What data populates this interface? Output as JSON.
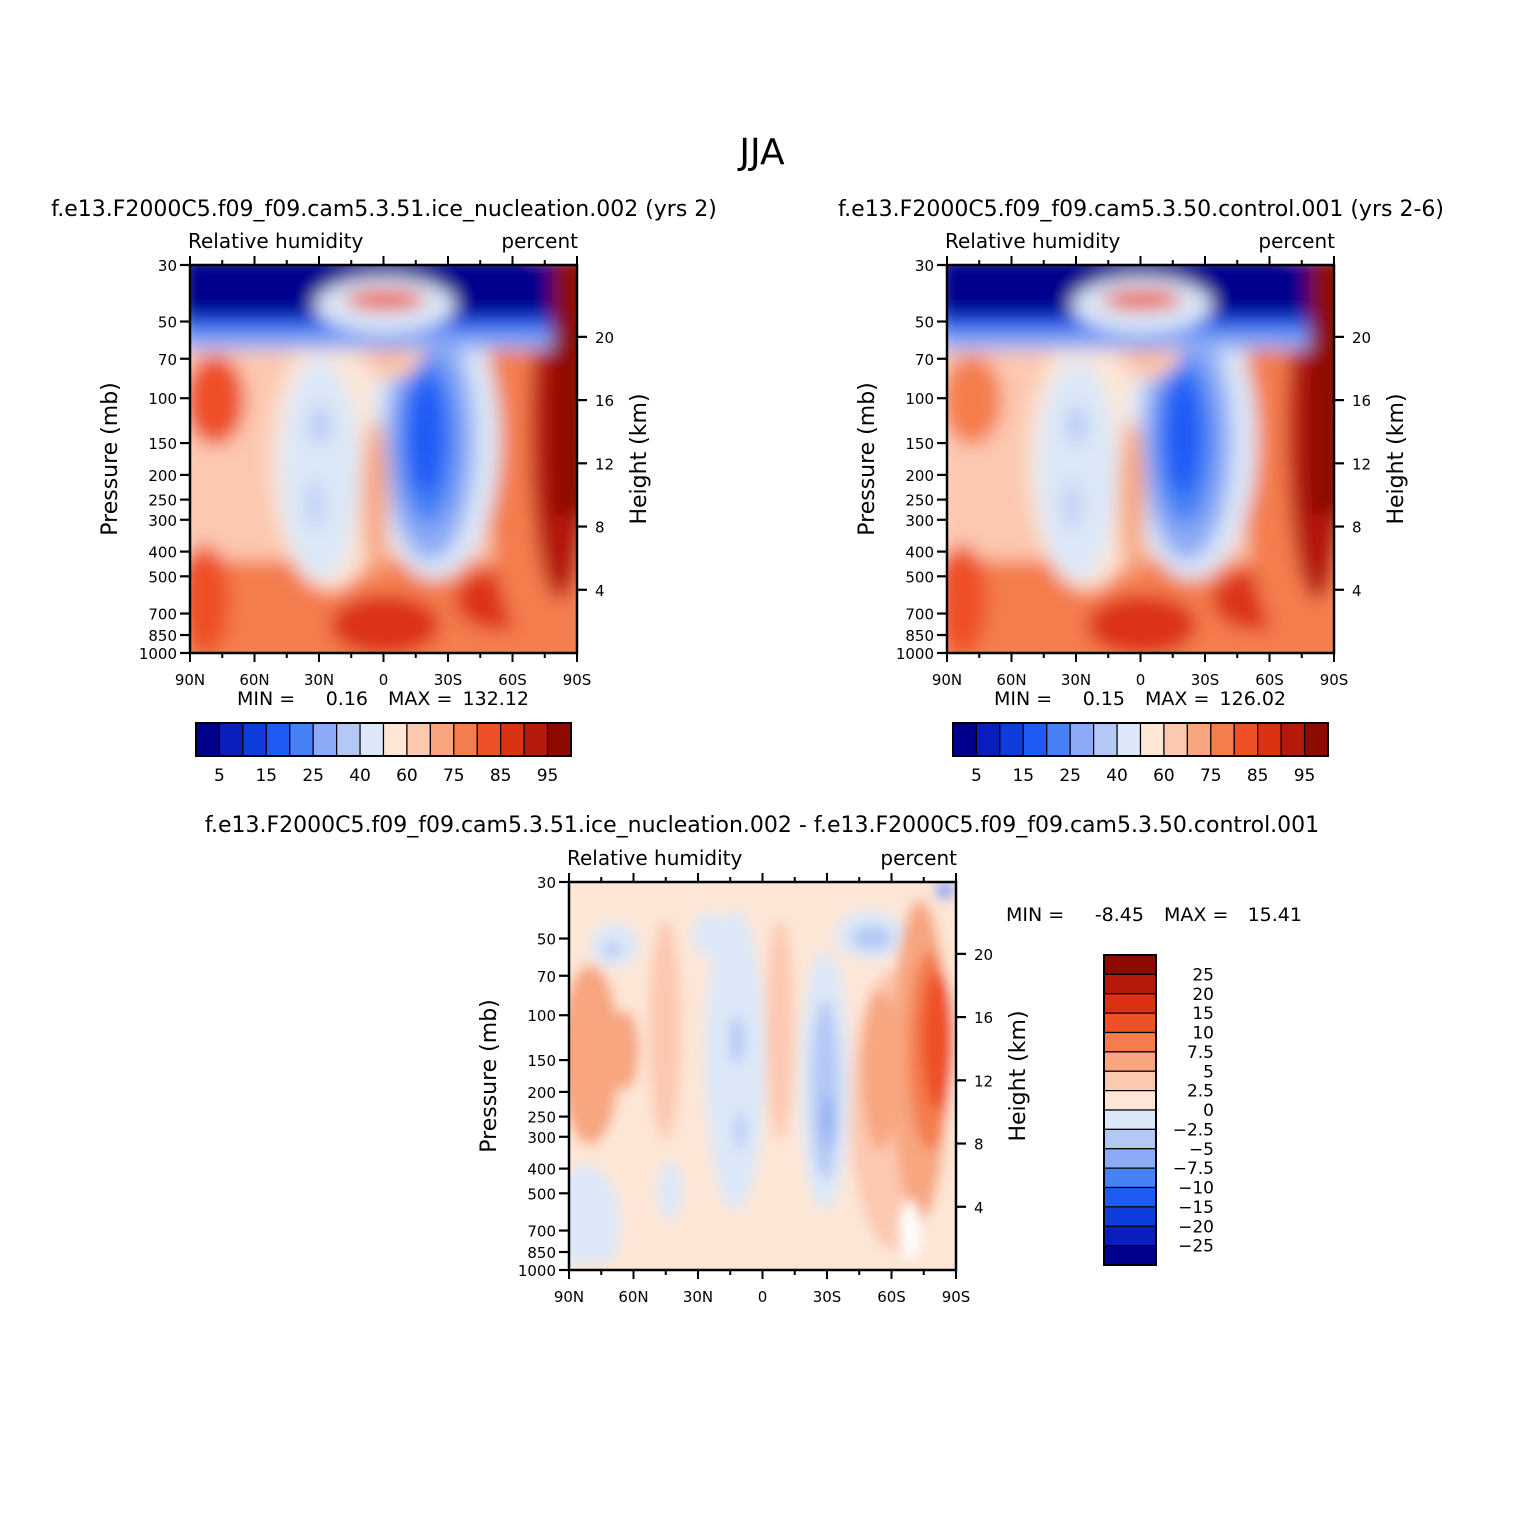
{
  "figure_title": "JJA",
  "chart_data": [
    {
      "type": "heatmap",
      "title": "f.e13.F2000C5.f09_f09.cam5.3.51.ice_nucleation.002 (yrs 2)",
      "left_label": "Relative humidity",
      "right_label": "percent",
      "ylabel": "Pressure (mb)",
      "ylabel_right": "Height (km)",
      "x_ticks": [
        "90N",
        "60N",
        "30N",
        "0",
        "30S",
        "60S",
        "90S"
      ],
      "y_ticks": [
        "30",
        "50",
        "70",
        "100",
        "150",
        "200",
        "250",
        "300",
        "400",
        "500",
        "700",
        "850",
        "1000"
      ],
      "height_ticks": [
        "20",
        "16",
        "12",
        "8",
        "4"
      ],
      "min_label": "MIN =",
      "min_value": "0.16",
      "max_label": "MAX =",
      "max_value": "132.12",
      "colorbar_labels": [
        "5",
        "15",
        "25",
        "40",
        "60",
        "75",
        "85",
        "95"
      ],
      "colorbar_colors": [
        "#00008c",
        "#0a1ebe",
        "#0f3cdc",
        "#1e5af5",
        "#4682f5",
        "#8caaf5",
        "#b4c8f5",
        "#dce8f8",
        "#fde6d6",
        "#fcc8b0",
        "#f7a67f",
        "#f47d4d",
        "#ee5028",
        "#dc3214",
        "#b4190a",
        "#8c0a00"
      ],
      "field": "upper-left relative humidity pattern, dry stratosphere (<5%), moist NH low levels and SH polar column (>95%), dry subtropical minimum near 20S mid-troposphere"
    },
    {
      "type": "heatmap",
      "title": "f.e13.F2000C5.f09_f09.cam5.3.50.control.001 (yrs 2-6)",
      "left_label": "Relative humidity",
      "right_label": "percent",
      "ylabel": "Pressure (mb)",
      "ylabel_right": "Height (km)",
      "x_ticks": [
        "90N",
        "60N",
        "30N",
        "0",
        "30S",
        "60S",
        "90S"
      ],
      "y_ticks": [
        "30",
        "50",
        "70",
        "100",
        "150",
        "200",
        "250",
        "300",
        "400",
        "500",
        "700",
        "850",
        "1000"
      ],
      "height_ticks": [
        "20",
        "16",
        "12",
        "8",
        "4"
      ],
      "min_label": "MIN =",
      "min_value": "0.15",
      "max_label": "MAX =",
      "max_value": "126.02",
      "colorbar_labels": [
        "5",
        "15",
        "25",
        "40",
        "60",
        "75",
        "85",
        "95"
      ],
      "colorbar_colors": [
        "#00008c",
        "#0a1ebe",
        "#0f3cdc",
        "#1e5af5",
        "#4682f5",
        "#8caaf5",
        "#b4c8f5",
        "#dce8f8",
        "#fde6d6",
        "#fcc8b0",
        "#f7a67f",
        "#f47d4d",
        "#ee5028",
        "#dc3214",
        "#b4190a",
        "#8c0a00"
      ],
      "field": "control relative humidity pattern, similar to test run"
    },
    {
      "type": "heatmap",
      "title": "f.e13.F2000C5.f09_f09.cam5.3.51.ice_nucleation.002 - f.e13.F2000C5.f09_f09.cam5.3.50.control.001",
      "left_label": "Relative humidity",
      "right_label": "percent",
      "ylabel": "Pressure (mb)",
      "ylabel_right": "Height (km)",
      "x_ticks": [
        "90N",
        "60N",
        "30N",
        "0",
        "30S",
        "60S",
        "90S"
      ],
      "y_ticks": [
        "30",
        "50",
        "70",
        "100",
        "150",
        "200",
        "250",
        "300",
        "400",
        "500",
        "700",
        "850",
        "1000"
      ],
      "height_ticks": [
        "20",
        "16",
        "12",
        "8",
        "4"
      ],
      "min_label": "MIN =",
      "min_value": "-8.45",
      "max_label": "MAX =",
      "max_value": "15.41",
      "colorbar_labels": [
        "25",
        "20",
        "15",
        "10",
        "7.5",
        "5",
        "2.5",
        "0",
        "-2.5",
        "-5",
        "-7.5",
        "-10",
        "-15",
        "-20",
        "-25"
      ],
      "colorbar_colors": [
        "#8c0a00",
        "#b4190a",
        "#dc3214",
        "#ee5028",
        "#f47d4d",
        "#f7a67f",
        "#fcc8b0",
        "#fde6d6",
        "#dce8f8",
        "#b4c8f5",
        "#8caaf5",
        "#4682f5",
        "#1e5af5",
        "#0f3cdc",
        "#0a1ebe",
        "#00008c"
      ],
      "field": "difference field, mostly 0 to 2.5, positive 5-10 in SH mid-troposphere near 70-85S, negative -2.5 to -5 near 25S"
    }
  ]
}
